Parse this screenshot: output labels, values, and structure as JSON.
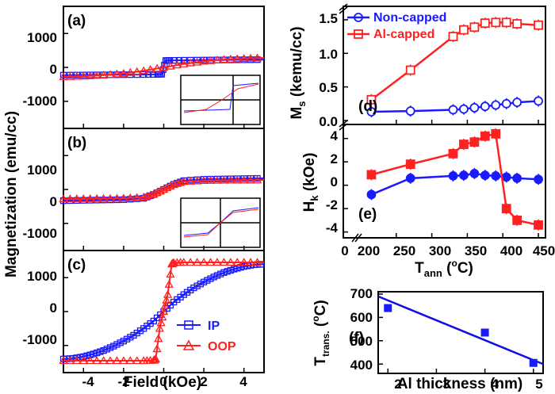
{
  "colors": {
    "blue": "#1a1aff",
    "red": "#ff2020",
    "fit": "#1010dd",
    "axis": "#000000"
  },
  "left": {
    "ylabel": "Magnetization (emu/cc)",
    "xlabel": "Field (kOe)",
    "yticks": [
      "1000",
      "0",
      "-1000"
    ],
    "xticks": [
      "-4",
      "-2",
      "0",
      "2",
      "4"
    ],
    "panel_a": "(a)",
    "panel_b": "(b)",
    "panel_c": "(c)",
    "legend_ip": "IP",
    "legend_oop": "OOP"
  },
  "right_top": {
    "ylabel_ms": "M",
    "ylabel_ms_sub": "s",
    "ylabel_ms_unit": " (kemu/cc)",
    "ylabel_hk": "H",
    "ylabel_hk_sub": "k",
    "ylabel_hk_unit": " (kOe)",
    "xlabel_main": "T",
    "xlabel_sub": "ann",
    "xlabel_unit": " (",
    "xlabel_unit_sup": "o",
    "xlabel_unit_end": "C)",
    "ms_yticks": [
      "1.5",
      "1.0",
      "0.5",
      "0.0"
    ],
    "hk_yticks": [
      "4",
      "2",
      "0",
      "-2",
      "-4"
    ],
    "xticks": [
      "0",
      "200",
      "250",
      "300",
      "350",
      "400",
      "450"
    ],
    "panel_d": "(d)",
    "panel_e": "(e)",
    "legend_non": "Non-capped",
    "legend_al": "Al-capped"
  },
  "right_bottom": {
    "ylabel_main": "T",
    "ylabel_sub": "trans.",
    "ylabel_unit": " (",
    "ylabel_unit_sup": "o",
    "ylabel_unit_end": "C)",
    "xlabel": "Al thickness (nm)",
    "yticks": [
      "700",
      "600",
      "500",
      "400"
    ],
    "xticks": [
      "2",
      "3",
      "4",
      "5"
    ],
    "panel_f": "(f)"
  },
  "chart_data": [
    {
      "type": "line",
      "panel": "(a)",
      "xlabel": "Field (kOe)",
      "ylabel": "Magnetization (emu/cc)",
      "xlim": [
        -5,
        5
      ],
      "ylim": [
        -1800,
        1800
      ],
      "series": [
        {
          "name": "IP",
          "x": [
            -5,
            -4,
            -3,
            -2,
            -1,
            -0.3,
            -0.1,
            0.1,
            0.3,
            1,
            2,
            3,
            4,
            5
          ],
          "y": [
            -230,
            -225,
            -220,
            -215,
            -210,
            -205,
            -200,
            200,
            205,
            210,
            215,
            220,
            225,
            230
          ]
        },
        {
          "name": "OOP",
          "x": [
            -5,
            -4,
            -3,
            -2,
            -1,
            0,
            1,
            2,
            3,
            4,
            5
          ],
          "y": [
            -280,
            -260,
            -230,
            -180,
            -100,
            0,
            100,
            180,
            230,
            260,
            280
          ]
        }
      ]
    },
    {
      "type": "line",
      "panel": "(b)",
      "xlabel": "Field (kOe)",
      "ylabel": "Magnetization (emu/cc)",
      "xlim": [
        -5,
        5
      ],
      "ylim": [
        -1800,
        1800
      ],
      "series": [
        {
          "name": "IP",
          "x": [
            -5,
            -4,
            -3,
            -2,
            -1,
            -0.5,
            0,
            0.5,
            1,
            2,
            3,
            4,
            5
          ],
          "y": [
            -330,
            -320,
            -310,
            -300,
            -260,
            -150,
            0,
            150,
            260,
            300,
            310,
            320,
            330
          ]
        },
        {
          "name": "OOP",
          "x": [
            -5,
            -4,
            -3,
            -2,
            -1,
            -0.5,
            0,
            0.5,
            1,
            2,
            3,
            4,
            5
          ],
          "y": [
            -280,
            -275,
            -270,
            -260,
            -230,
            -140,
            0,
            140,
            230,
            260,
            270,
            275,
            280
          ]
        }
      ]
    },
    {
      "type": "line",
      "panel": "(c)",
      "xlabel": "Field (kOe)",
      "ylabel": "Magnetization (emu/cc)",
      "xlim": [
        -5,
        5
      ],
      "ylim": [
        -1800,
        1800
      ],
      "series": [
        {
          "name": "IP",
          "x": [
            -5,
            -4.5,
            -4,
            -3.5,
            -3,
            -2.5,
            -2,
            -1.5,
            -1,
            -0.5,
            0,
            0.5,
            1,
            1.5,
            2,
            2.5,
            3,
            3.5,
            4,
            4.5,
            5
          ],
          "y": [
            -1400,
            -1380,
            -1330,
            -1250,
            -1150,
            -1020,
            -870,
            -700,
            -500,
            -280,
            0,
            280,
            500,
            700,
            870,
            1020,
            1150,
            1250,
            1330,
            1380,
            1400
          ]
        },
        {
          "name": "OOP",
          "x": [
            -5,
            -4,
            -3,
            -2,
            -1,
            -0.5,
            -0.4,
            -0.2,
            0,
            0.2,
            0.4,
            0.5,
            1,
            2,
            3,
            4,
            5
          ],
          "y": [
            -1450,
            -1450,
            -1450,
            -1450,
            -1450,
            -1440,
            -1400,
            -500,
            0,
            500,
            1400,
            1440,
            1450,
            1450,
            1450,
            1450,
            1450
          ]
        }
      ]
    },
    {
      "type": "line",
      "panel": "(d)",
      "ylabel": "Ms (kemu/cc)",
      "xlim": [
        200,
        460
      ],
      "ylim": [
        0,
        1.7
      ],
      "series": [
        {
          "name": "Non-capped",
          "x": [
            215,
            270,
            330,
            345,
            360,
            375,
            390,
            405,
            420,
            450
          ],
          "y": [
            0.13,
            0.14,
            0.16,
            0.17,
            0.19,
            0.21,
            0.23,
            0.25,
            0.27,
            0.29
          ]
        },
        {
          "name": "Al-capped",
          "x": [
            215,
            270,
            330,
            345,
            360,
            375,
            390,
            405,
            420,
            450
          ],
          "y": [
            0.31,
            0.75,
            1.25,
            1.35,
            1.39,
            1.45,
            1.46,
            1.46,
            1.44,
            1.42
          ]
        }
      ]
    },
    {
      "type": "line",
      "panel": "(e)",
      "xlabel": "Tann (oC)",
      "ylabel": "Hk (kOe)",
      "xlim": [
        200,
        460
      ],
      "ylim": [
        -4.5,
        5.2
      ],
      "series": [
        {
          "name": "Non-capped",
          "x": [
            215,
            270,
            330,
            345,
            360,
            375,
            390,
            405,
            420,
            450
          ],
          "y": [
            -0.8,
            0.6,
            0.8,
            0.85,
            1.0,
            0.85,
            0.8,
            0.7,
            0.6,
            0.5
          ]
        },
        {
          "name": "Al-capped",
          "x": [
            215,
            270,
            330,
            345,
            360,
            375,
            390,
            405,
            420,
            450
          ],
          "y": [
            0.9,
            1.8,
            2.7,
            3.5,
            3.7,
            4.2,
            4.4,
            -2.0,
            -3.0,
            -3.4
          ]
        }
      ]
    },
    {
      "type": "scatter",
      "panel": "(f)",
      "xlabel": "Al thickness (nm)",
      "ylabel": "Ttrans. (oC)",
      "xlim": [
        1.8,
        5.2
      ],
      "ylim": [
        360,
        710
      ],
      "series": [
        {
          "x": [
            2,
            4,
            5
          ],
          "y": [
            640,
            535,
            405
          ]
        }
      ],
      "fit": {
        "x": [
          1.8,
          5.2
        ],
        "y": [
          690,
          400
        ]
      }
    }
  ]
}
